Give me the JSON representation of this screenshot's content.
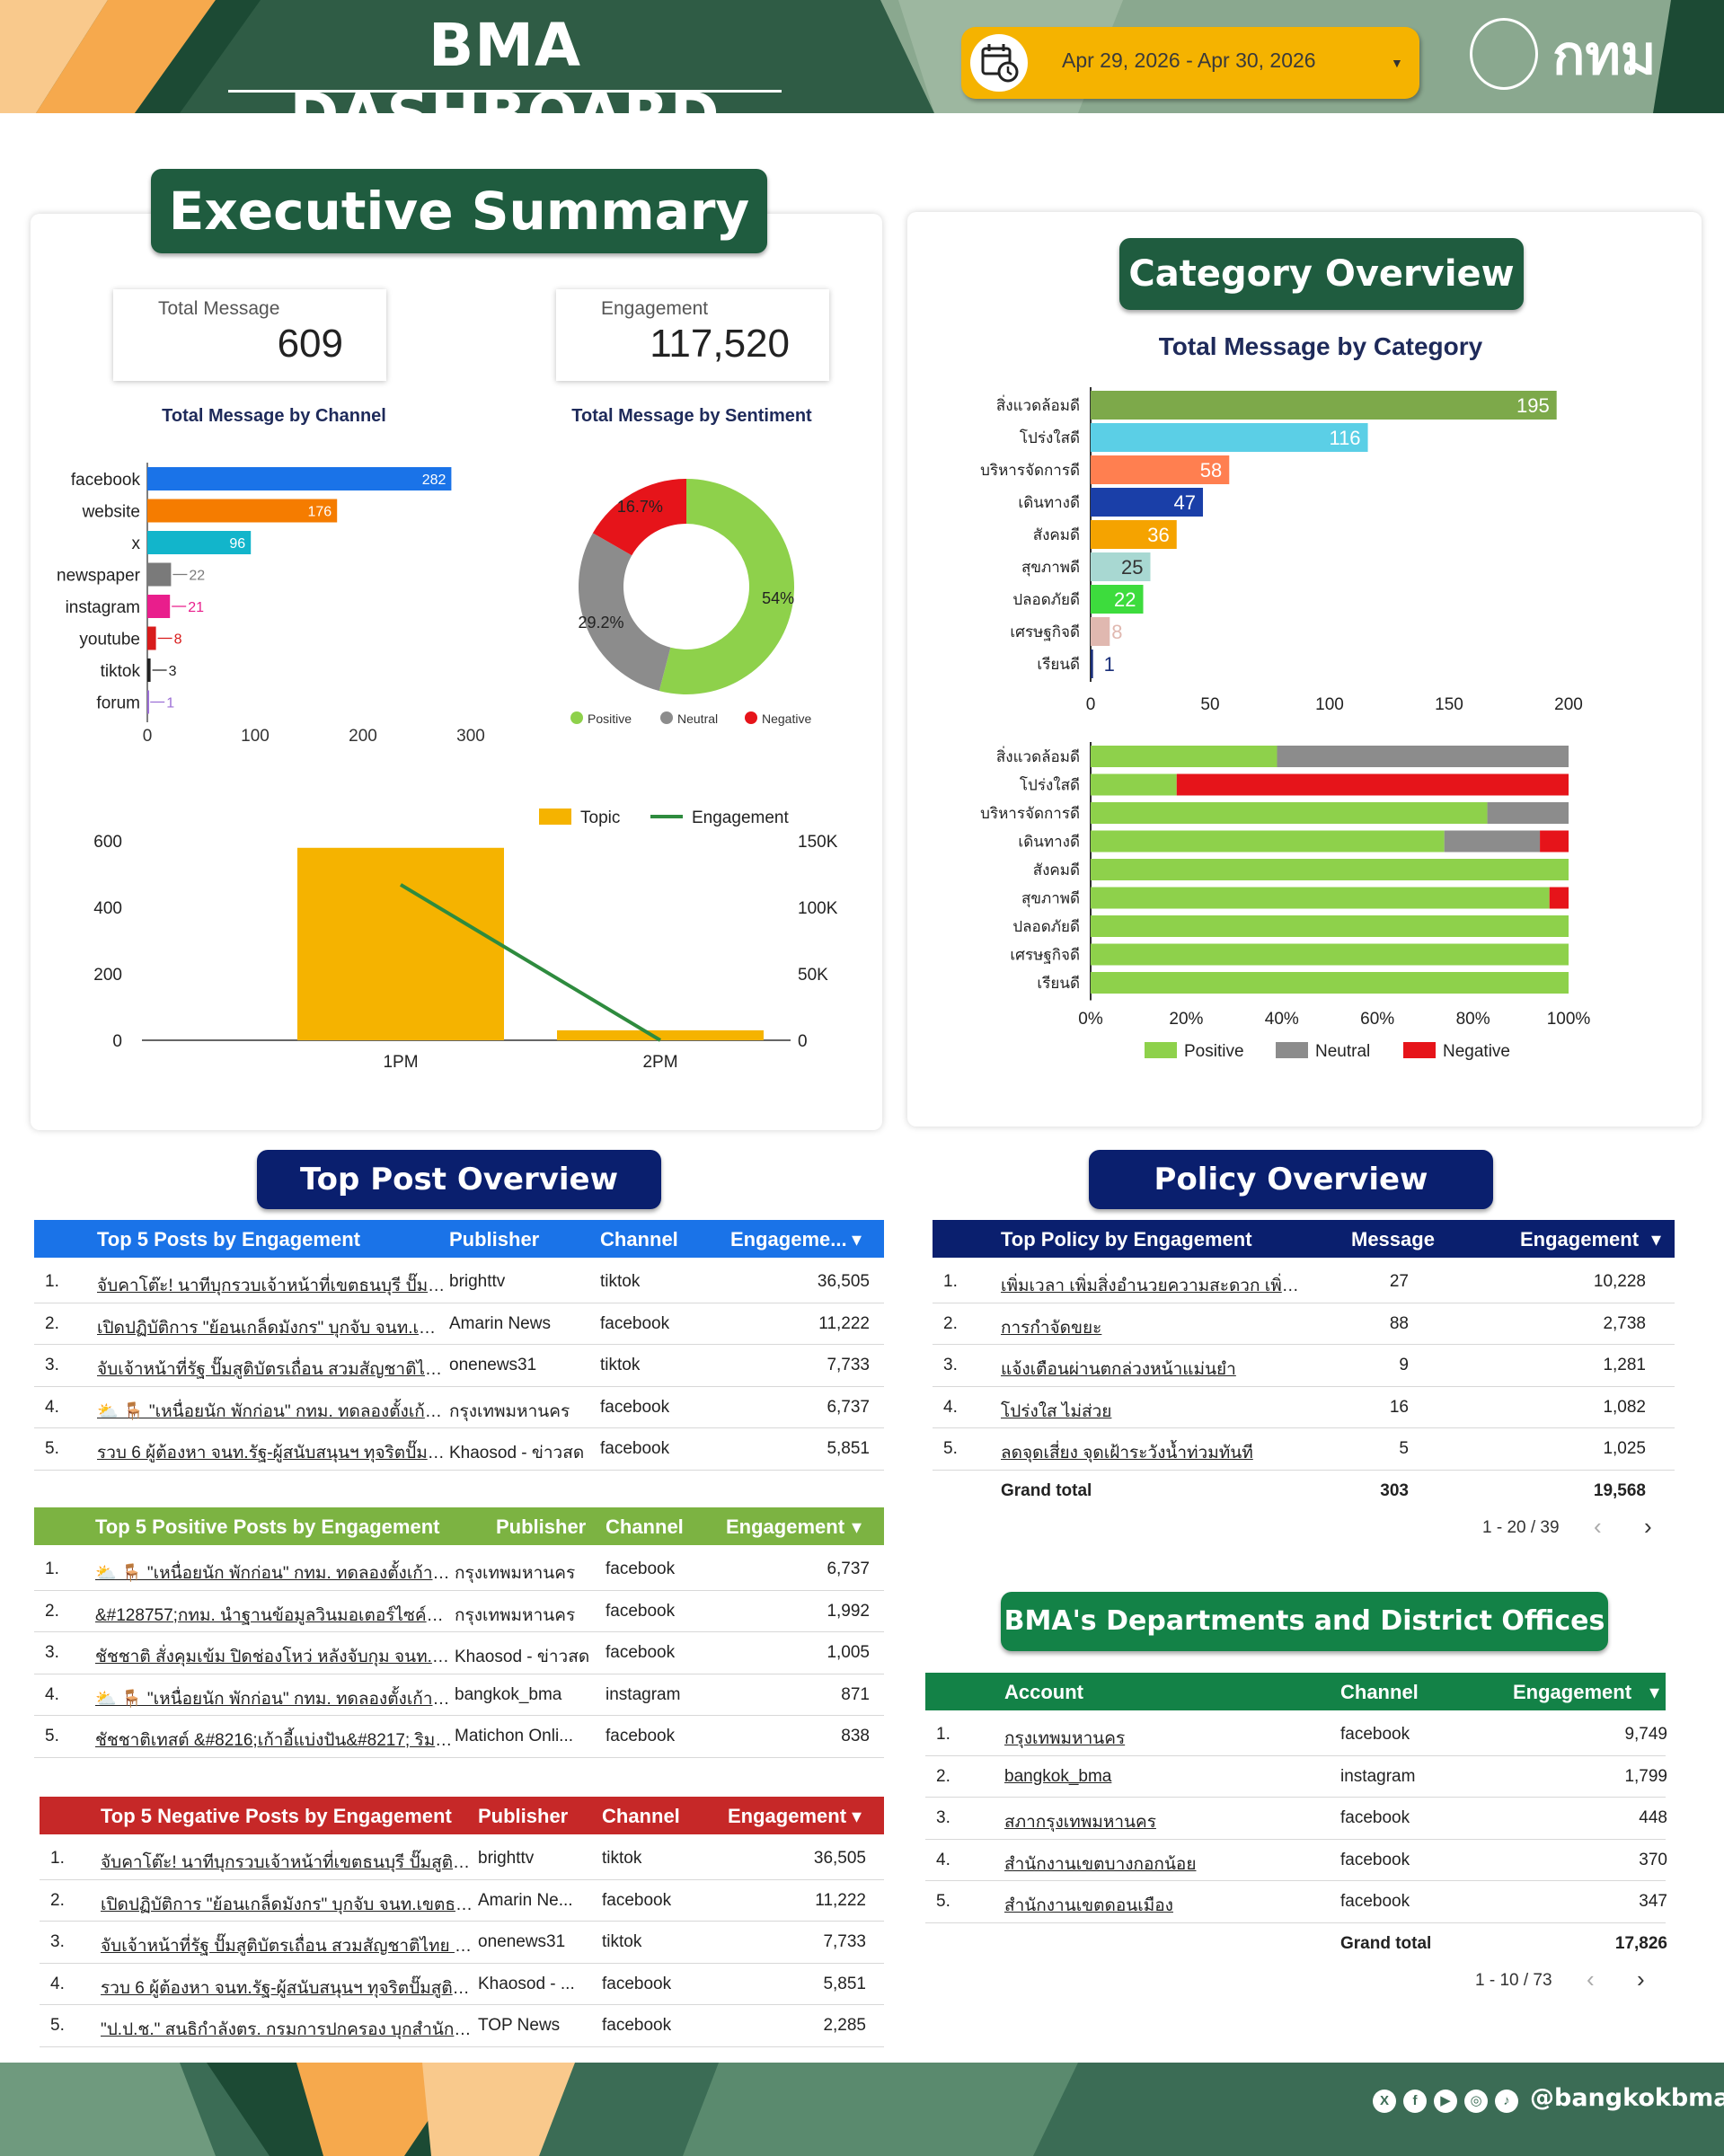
{
  "header": {
    "title": "BMA DASHBOARD",
    "date_range": "Apr 29, 2026 - Apr 30, 2026",
    "logo_text": "กทม"
  },
  "colors": {
    "dark_green": "#1f5c3f",
    "navy": "#0a1f6e",
    "positive": "#8ed14b",
    "neutral": "#8c8c8c",
    "negative": "#e6141a",
    "orange": "#f5b300"
  },
  "exec": {
    "title": "Executive Summary",
    "total_message_label": "Total Message",
    "total_message": "609",
    "engagement_label": "Engagement",
    "engagement": "117,520",
    "channel_title": "Total Message by Channel",
    "sentiment_title": "Total Message by Sentiment"
  },
  "category": {
    "title": "Category Overview",
    "subtitle": "Total Message by Category"
  },
  "chart_data": [
    {
      "id": "channel",
      "type": "bar",
      "orientation": "horizontal",
      "title": "Total Message by Channel",
      "categories": [
        "facebook",
        "website",
        "x",
        "newspaper",
        "instagram",
        "youtube",
        "tiktok",
        "forum"
      ],
      "values": [
        282,
        176,
        96,
        22,
        21,
        8,
        3,
        1
      ],
      "colors": [
        "#1a73e8",
        "#f57c00",
        "#12b5cb",
        "#7a7a7a",
        "#e91e8c",
        "#d81b1b",
        "#222222",
        "#9c6fd6"
      ],
      "xlim": [
        0,
        300
      ],
      "xticks": [
        "0",
        "100",
        "200",
        "300"
      ]
    },
    {
      "id": "sentiment",
      "type": "pie",
      "donut": true,
      "title": "Total Message by Sentiment",
      "labels": [
        "Positive",
        "Neutral",
        "Negative"
      ],
      "values": [
        54,
        29.2,
        16.7
      ],
      "display": [
        "54%",
        "29.2%",
        "16.7%"
      ],
      "colors": [
        "#8ed14b",
        "#8c8c8c",
        "#e6141a"
      ],
      "legend": "bottom"
    },
    {
      "id": "topic",
      "type": "bar+line",
      "categories": [
        "1PM",
        "2PM"
      ],
      "series": [
        {
          "name": "Topic",
          "type": "bar",
          "values": [
            579,
            30
          ],
          "axis": "left",
          "color": "#f5b300"
        },
        {
          "name": "Engagement",
          "type": "line",
          "values": [
            117000,
            0
          ],
          "axis": "right",
          "color": "#2e8b3e"
        }
      ],
      "ylim_left": [
        0,
        600
      ],
      "ylim_right": [
        0,
        150000
      ],
      "yticks_left": [
        "0",
        "200",
        "400",
        "600"
      ],
      "yticks_right": [
        "0",
        "50K",
        "100K",
        "150K"
      ],
      "legend": "top-right"
    },
    {
      "id": "category",
      "type": "bar",
      "orientation": "horizontal",
      "title": "Total Message by Category",
      "categories": [
        "สิ่งแวดล้อมดี",
        "โปร่งใสดี",
        "บริหารจัดการดี",
        "เดินทางดี",
        "สังคมดี",
        "สุขภาพดี",
        "ปลอดภัยดี",
        "เศรษฐกิจดี",
        "เรียนดี"
      ],
      "values": [
        195,
        116,
        58,
        47,
        36,
        25,
        22,
        8,
        1
      ],
      "colors": [
        "#7da94a",
        "#5bcfe6",
        "#ff7f50",
        "#1a3fa8",
        "#f5a300",
        "#a8d8d2",
        "#3ddc3d",
        "#e0b8b0",
        "#1a2f7a"
      ],
      "xlim": [
        0,
        200
      ],
      "xticks": [
        "0",
        "50",
        "100",
        "150",
        "200"
      ]
    },
    {
      "id": "category_sentiment",
      "type": "bar",
      "stacked": true,
      "percent": true,
      "orientation": "horizontal",
      "categories": [
        "สิ่งแวดล้อมดี",
        "โปร่งใสดี",
        "บริหารจัดการดี",
        "เดินทางดี",
        "สังคมดี",
        "สุขภาพดี",
        "ปลอดภัยดี",
        "เศรษฐกิจดี",
        "เรียนดี"
      ],
      "series": [
        {
          "name": "Positive",
          "values": [
            39,
            18,
            83,
            74,
            100,
            96,
            100,
            100,
            100
          ],
          "color": "#8ed14b"
        },
        {
          "name": "Neutral",
          "values": [
            61,
            0,
            17,
            20,
            0,
            0,
            0,
            0,
            0
          ],
          "color": "#8c8c8c"
        },
        {
          "name": "Negative",
          "values": [
            0,
            82,
            0,
            6,
            0,
            4,
            0,
            0,
            0
          ],
          "color": "#e6141a"
        }
      ],
      "xticks": [
        "0%",
        "20%",
        "40%",
        "60%",
        "80%",
        "100%"
      ],
      "legend": "bottom"
    }
  ],
  "top_post": {
    "title": "Top Post Overview",
    "engagement": {
      "headers": [
        "Top 5 Posts by Engagement",
        "Publisher",
        "Channel",
        "Engageme...",
        "▾"
      ],
      "rows": [
        [
          "1.",
          "จับคาโต๊ะ! นาทีบุกรวบเจ้าหน้าที่เขตธนบุรี ปั๊มสูติบั...",
          "brighttv",
          "tiktok",
          "36,505"
        ],
        [
          "2.",
          "เปิดปฏิบัติการ \"ย้อนเกล็ดมังกร\" บุกจับ จนท.เขตธน...",
          "Amarin News",
          "facebook",
          "11,222"
        ],
        [
          "3.",
          "จับเจ้าหน้าที่รัฐ ปั๊มสูติบัตรเถื่อน สวมสัญชาติไทย #...",
          "onenews31",
          "tiktok",
          "7,733"
        ],
        [
          "4.",
          "⛅ 🪑 \"เหนื่อยนัก พักก่อน\" กทม. ทดลองตั้งเก้าอี้แป...",
          "กรุงเทพมหานคร",
          "facebook",
          "6,737"
        ],
        [
          "5.",
          "รวบ 6 ผู้ต้องหา จนท.รัฐ-ผู้สนับสนุนฯ ทุจริตปั๊มสูติ...",
          "Khaosod - ข่าวสด",
          "facebook",
          "5,851"
        ]
      ]
    },
    "positive": {
      "headers": [
        "Top 5 Positive Posts by Engagement",
        "Publisher",
        "Channel",
        "Engagement",
        "▾"
      ],
      "rows": [
        [
          "1.",
          "⛅ 🪑 \"เหนื่อยนัก พักก่อน\" กทม. ทดลองตั้งเก้าอี้แป...",
          "กรุงเทพมหานคร",
          "facebook",
          "6,737"
        ],
        [
          "2.",
          "&#128757;กทม. นำฐานข้อมูลวินมอเตอร์ไซค์ขึ้นดิ...",
          "กรุงเทพมหานคร",
          "facebook",
          "1,992"
        ],
        [
          "3.",
          "ชัชชาติ สั่งคุมเข้ม ปิดช่องโหว่ หลังจับกุม จนท.เขตธ...",
          "Khaosod - ข่าวสด",
          "facebook",
          "1,005"
        ],
        [
          "4.",
          "⛅ 🪑 \"เหนื่อยนัก พักก่อน\" กทม. ทดลองตั้งเก้าอี้แป...",
          "bangkok_bma",
          "instagram",
          "871"
        ],
        [
          "5.",
          "ชัชชาติเทสต์ &#8216;เก้าอี้แบ่งปัน&#8217; ริมสา...",
          "Matichon Onli...",
          "facebook",
          "838"
        ]
      ]
    },
    "negative": {
      "headers": [
        "Top 5 Negative Posts by Engagement",
        "Publisher",
        "Channel",
        "Engagement",
        "▾"
      ],
      "rows": [
        [
          "1.",
          "จับคาโต๊ะ! นาทีบุกรวบเจ้าหน้าที่เขตธนบุรี ปั๊มสูติบัตรเถื่...",
          "brighttv",
          "tiktok",
          "36,505"
        ],
        [
          "2.",
          "เปิดปฏิบัติการ \"ย้อนเกล็ดมังกร\" บุกจับ จนท.เขตธนบุรี...",
          "Amarin Ne...",
          "facebook",
          "11,222"
        ],
        [
          "3.",
          "จับเจ้าหน้าที่รัฐ ปั๊มสูติบัตรเถื่อน สวมสัญชาติไทย #ข่าว...",
          "onenews31",
          "tiktok",
          "7,733"
        ],
        [
          "4.",
          "รวบ 6 ผู้ต้องหา จนท.รัฐ-ผู้สนับสนุนฯ ทุจริตปั๊มสูติบัตร...",
          "Khaosod - ...",
          "facebook",
          "5,851"
        ],
        [
          "5.",
          "\"ป.ป.ช.\" สนธิกำลังตร. กรมการปกครอง บุกสำนักทะเบีย...",
          "TOP News",
          "facebook",
          "2,285"
        ]
      ]
    }
  },
  "policy": {
    "title": "Policy Overview",
    "headers": [
      "Top Policy by Engagement",
      "Message",
      "Engagement",
      "▾"
    ],
    "rows": [
      [
        "1.",
        "เพิ่มเวลา เพิ่มสิ่งอำนวยความสะดวก เพิ่มการเข้า...",
        "27",
        "10,228"
      ],
      [
        "2.",
        "การกำจัดขยะ",
        "88",
        "2,738"
      ],
      [
        "3.",
        "แจ้งเตือนผ่านตกล่วงหน้าแม่นยำ",
        "9",
        "1,281"
      ],
      [
        "4.",
        "โปร่งใส ไม่ส่วย",
        "16",
        "1,082"
      ],
      [
        "5.",
        "ลดจุดเสี่ยง จุดเฝ้าระวังน้ำท่วมทันที",
        "5",
        "1,025"
      ]
    ],
    "total": [
      "Grand total",
      "303",
      "19,568"
    ],
    "pagination": "1 - 20 / 39"
  },
  "departments": {
    "title": "BMA's Departments and District Offices",
    "headers": [
      "Account",
      "Channel",
      "Engagement",
      "▾"
    ],
    "rows": [
      [
        "1.",
        "กรุงเทพมหานคร",
        "facebook",
        "9,749"
      ],
      [
        "2.",
        "bangkok_bma",
        "instagram",
        "1,799"
      ],
      [
        "3.",
        "สภากรุงเทพมหานคร",
        "facebook",
        "448"
      ],
      [
        "4.",
        "สำนักงานเขตบางกอกน้อย",
        "facebook",
        "370"
      ],
      [
        "5.",
        "สำนักงานเขตดอนเมือง",
        "facebook",
        "347"
      ]
    ],
    "total": [
      "Grand total",
      "17,826"
    ],
    "pagination": "1 - 10 / 73"
  },
  "footer": {
    "handle": "@bangkokbma",
    "icons": [
      "x-icon",
      "facebook-icon",
      "youtube-icon",
      "instagram-icon",
      "tiktok-icon"
    ],
    "glyphs": [
      "X",
      "f",
      "▶",
      "◎",
      "♪"
    ]
  }
}
